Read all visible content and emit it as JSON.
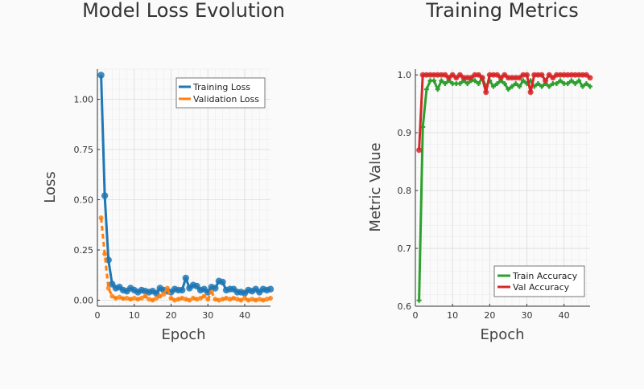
{
  "chart_data": [
    {
      "type": "line",
      "title": "Model Loss Evolution",
      "xlabel": "Epoch",
      "ylabel": "Loss",
      "xlim": [
        0,
        47
      ],
      "ylim": [
        -0.03,
        1.15
      ],
      "xticks": [
        0,
        10,
        20,
        30,
        40
      ],
      "yticks": [
        0.0,
        0.25,
        0.5,
        0.75,
        1.0
      ],
      "ytick_labels": [
        "0.00",
        "0.25",
        "0.50",
        "0.75",
        "1.00"
      ],
      "grid": true,
      "legend_position": "top-right",
      "x": [
        1,
        2,
        3,
        4,
        5,
        6,
        7,
        8,
        9,
        10,
        11,
        12,
        13,
        14,
        15,
        16,
        17,
        18,
        19,
        20,
        21,
        22,
        23,
        24,
        25,
        26,
        27,
        28,
        29,
        30,
        31,
        32,
        33,
        34,
        35,
        36,
        37,
        38,
        39,
        40,
        41,
        42,
        43,
        44,
        45,
        46,
        47
      ],
      "series": [
        {
          "name": "Training Loss",
          "color": "#1f77b4",
          "values": [
            1.12,
            0.52,
            0.2,
            0.08,
            0.06,
            0.065,
            0.05,
            0.045,
            0.06,
            0.05,
            0.04,
            0.05,
            0.045,
            0.04,
            0.045,
            0.035,
            0.06,
            0.05,
            0.045,
            0.04,
            0.055,
            0.05,
            0.05,
            0.11,
            0.06,
            0.075,
            0.07,
            0.05,
            0.055,
            0.04,
            0.065,
            0.06,
            0.095,
            0.09,
            0.05,
            0.055,
            0.055,
            0.04,
            0.04,
            0.035,
            0.05,
            0.045,
            0.055,
            0.04,
            0.055,
            0.05,
            0.055
          ]
        },
        {
          "name": "Validation Loss",
          "color": "#ff7f0e",
          "values": [
            0.41,
            0.23,
            0.06,
            0.02,
            0.01,
            0.015,
            0.008,
            0.01,
            0.005,
            0.01,
            0.005,
            0.01,
            0.02,
            0.005,
            0.0,
            0.01,
            0.02,
            0.03,
            0.06,
            0.01,
            0.0,
            0.005,
            0.01,
            0.005,
            0.0,
            0.01,
            0.005,
            0.01,
            0.02,
            0.005,
            0.04,
            0.005,
            0.0,
            0.005,
            0.01,
            0.005,
            0.01,
            0.005,
            0.0,
            0.01,
            0.0,
            0.005,
            0.0,
            0.005,
            0.0,
            0.005,
            0.01
          ]
        }
      ]
    },
    {
      "type": "line",
      "title": "Training Metrics",
      "xlabel": "Epoch",
      "ylabel": "Metric Value",
      "xlim": [
        0,
        47
      ],
      "ylim": [
        0.6,
        1.01
      ],
      "xticks": [
        0,
        10,
        20,
        30,
        40
      ],
      "yticks": [
        0.6,
        0.7,
        0.8,
        0.9,
        1.0
      ],
      "ytick_labels": [
        "0.6",
        "0.7",
        "0.8",
        "0.9",
        "1.0"
      ],
      "grid": true,
      "legend_position": "bottom-right",
      "x": [
        1,
        2,
        3,
        4,
        5,
        6,
        7,
        8,
        9,
        10,
        11,
        12,
        13,
        14,
        15,
        16,
        17,
        18,
        19,
        20,
        21,
        22,
        23,
        24,
        25,
        26,
        27,
        28,
        29,
        30,
        31,
        32,
        33,
        34,
        35,
        36,
        37,
        38,
        39,
        40,
        41,
        42,
        43,
        44,
        45,
        46,
        47
      ],
      "series": [
        {
          "name": "Train Accuracy",
          "color": "#2ca02c",
          "values": [
            0.61,
            0.91,
            0.975,
            0.99,
            0.99,
            0.975,
            0.99,
            0.985,
            0.99,
            0.985,
            0.985,
            0.985,
            0.99,
            0.985,
            0.99,
            0.99,
            0.985,
            0.995,
            0.98,
            0.99,
            0.98,
            0.985,
            0.99,
            0.985,
            0.975,
            0.98,
            0.985,
            0.98,
            0.99,
            0.985,
            0.99,
            0.98,
            0.985,
            0.98,
            0.985,
            0.98,
            0.985,
            0.985,
            0.99,
            0.985,
            0.985,
            0.99,
            0.985,
            0.99,
            0.98,
            0.985,
            0.98
          ]
        },
        {
          "name": "Val Accuracy",
          "color": "#d62728",
          "values": [
            0.87,
            1.0,
            1.0,
            1.0,
            1.0,
            1.0,
            1.0,
            1.0,
            0.995,
            1.0,
            0.995,
            1.0,
            0.995,
            0.995,
            0.995,
            1.0,
            1.0,
            0.995,
            0.97,
            1.0,
            1.0,
            1.0,
            0.995,
            1.0,
            0.995,
            0.995,
            0.995,
            0.995,
            1.0,
            1.0,
            0.97,
            1.0,
            1.0,
            1.0,
            0.99,
            1.0,
            0.995,
            1.0,
            1.0,
            1.0,
            1.0,
            1.0,
            1.0,
            1.0,
            1.0,
            1.0,
            0.995
          ]
        }
      ]
    }
  ]
}
